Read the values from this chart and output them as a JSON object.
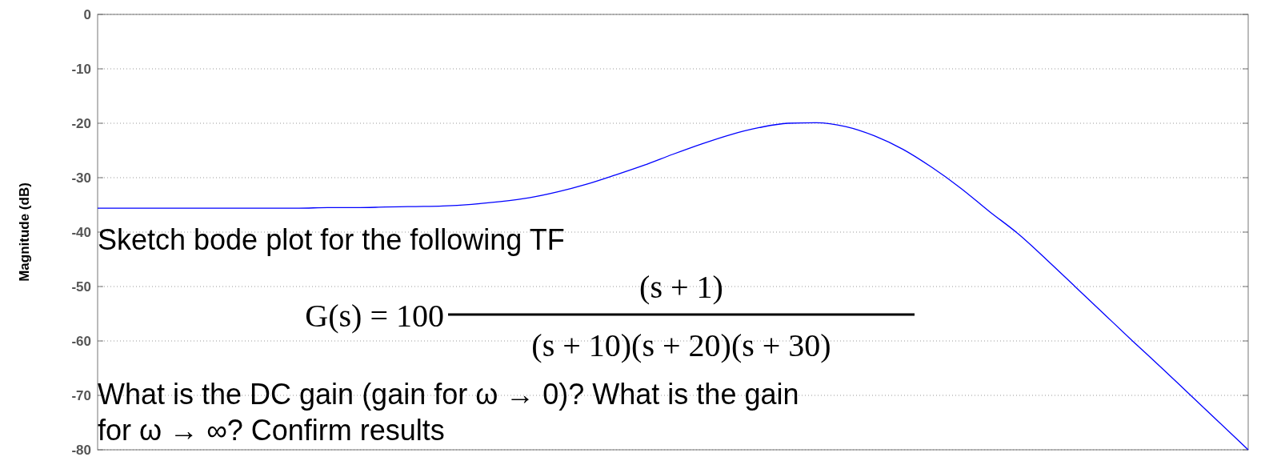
{
  "chart_data": {
    "type": "line",
    "ylabel": "Magnitude (dB)",
    "categories": [
      null,
      null,
      null,
      null,
      null,
      null,
      null,
      null,
      null,
      null,
      null,
      null,
      null,
      null,
      null,
      null,
      null,
      null,
      null,
      null,
      null,
      null,
      null,
      null,
      null,
      null,
      null,
      null,
      null,
      null,
      null,
      null,
      null,
      null,
      null,
      null,
      null,
      null,
      null,
      null,
      null
    ],
    "series": [
      {
        "color": "#0000ff",
        "values": [
          -35.6,
          -35.6,
          -35.6,
          -35.6,
          -35.6,
          -35.6,
          -35.6,
          -35.6,
          -35.5,
          -35.5,
          -35.4,
          -35.3,
          -35.2,
          -34.9,
          -34.4,
          -33.7,
          -32.6,
          -31.2,
          -29.5,
          -27.7,
          -25.7,
          -23.8,
          -22.1,
          -20.8,
          -20.0,
          -19.9,
          -20.6,
          -22.3,
          -24.8,
          -28.1,
          -31.9,
          -36.2,
          -40.3,
          -45.1,
          -50.1,
          -55.1,
          -60.1,
          -65.0,
          -70.0,
          -75.0,
          -80.0
        ]
      }
    ],
    "ylim": [
      -80,
      0
    ],
    "yticks": [
      0,
      -10,
      -20,
      -30,
      -40,
      -50,
      -60,
      -70,
      -80
    ],
    "grid": "y",
    "annotations": [
      "Sketch bode plot for the following TF",
      "G(s) = 100",
      "(s + 1)",
      "(s + 10)(s + 20)(s + 30)",
      "What is the DC gain (gain for ω → 0)? What is the gain",
      "for ω → ∞? Confirm results"
    ]
  }
}
